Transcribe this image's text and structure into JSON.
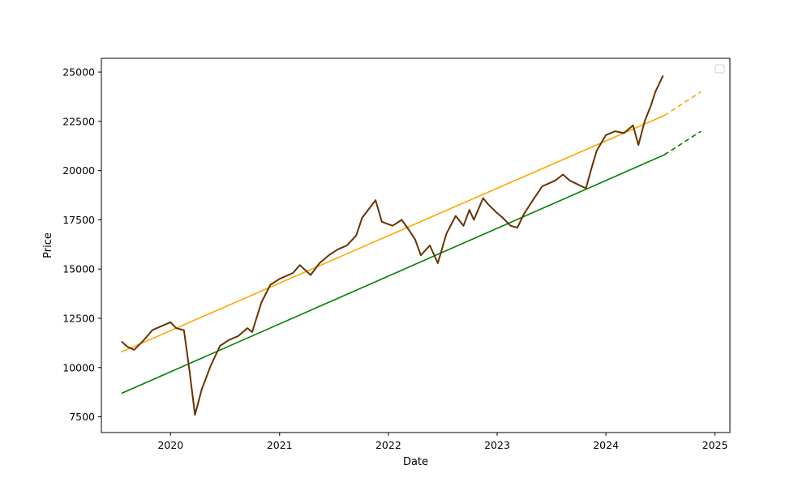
{
  "chart_data": {
    "type": "line",
    "title": "",
    "xlabel": "Date",
    "ylabel": "Price",
    "xlim": [
      "2019-05-14",
      "2025-02-20"
    ],
    "ylim": [
      6700,
      25700
    ],
    "x_ticks": [
      "2020",
      "2021",
      "2022",
      "2023",
      "2024",
      "2025"
    ],
    "y_ticks": [
      7500,
      10000,
      12500,
      15000,
      17500,
      20000,
      22500,
      25000
    ],
    "grid": false,
    "legend": {
      "placement": "top-right",
      "entries": []
    },
    "series": [
      {
        "color": "#663300",
        "style": "solid",
        "x": [
          "2019-07-22",
          "2019-08-10",
          "2019-09-01",
          "2019-10-01",
          "2019-11-01",
          "2019-12-01",
          "2020-01-01",
          "2020-01-20",
          "2020-02-15",
          "2020-03-05",
          "2020-03-23",
          "2020-04-15",
          "2020-05-15",
          "2020-06-15",
          "2020-07-15",
          "2020-08-15",
          "2020-09-15",
          "2020-10-01",
          "2020-11-01",
          "2020-12-01",
          "2021-01-01",
          "2021-02-15",
          "2021-03-10",
          "2021-04-15",
          "2021-05-15",
          "2021-06-15",
          "2021-07-15",
          "2021-08-15",
          "2021-09-15",
          "2021-10-05",
          "2021-11-19",
          "2021-12-10",
          "2022-01-15",
          "2022-02-15",
          "2022-03-10",
          "2022-04-01",
          "2022-04-20",
          "2022-05-20",
          "2022-06-16",
          "2022-07-15",
          "2022-08-15",
          "2022-09-10",
          "2022-09-30",
          "2022-10-15",
          "2022-11-15",
          "2022-12-01",
          "2022-12-28",
          "2023-01-20",
          "2023-02-15",
          "2023-03-10",
          "2023-04-01",
          "2023-05-01",
          "2023-06-01",
          "2023-07-15",
          "2023-08-10",
          "2023-09-01",
          "2023-10-26",
          "2023-11-15",
          "2023-12-01",
          "2024-01-01",
          "2024-02-01",
          "2024-03-01",
          "2024-04-01",
          "2024-04-19",
          "2024-05-10",
          "2024-05-31",
          "2024-06-15",
          "2024-07-10"
        ],
        "y": [
          11300,
          11050,
          10900,
          11350,
          11900,
          12100,
          12300,
          12000,
          11900,
          9800,
          7600,
          8900,
          10100,
          11100,
          11400,
          11600,
          12000,
          11800,
          13300,
          14200,
          14500,
          14800,
          15200,
          14700,
          15300,
          15700,
          16000,
          16200,
          16700,
          17600,
          18500,
          17400,
          17200,
          17500,
          17000,
          16500,
          15700,
          16200,
          15300,
          16800,
          17700,
          17200,
          18000,
          17500,
          18600,
          18300,
          17900,
          17600,
          17200,
          17100,
          17800,
          18500,
          19200,
          19500,
          19800,
          19500,
          19100,
          20200,
          21000,
          21800,
          22000,
          21900,
          22300,
          21300,
          22500,
          23300,
          24000,
          24800
        ]
      },
      {
        "color": "#ffa500",
        "style": "solid",
        "x": [
          "2019-07-22",
          "2024-07-15"
        ],
        "y": [
          10800,
          22800
        ]
      },
      {
        "color": "#ffa500",
        "style": "dashed",
        "x": [
          "2024-07-15",
          "2024-11-15"
        ],
        "y": [
          22800,
          24000
        ]
      },
      {
        "color": "#008000",
        "style": "solid",
        "x": [
          "2019-07-22",
          "2024-07-15"
        ],
        "y": [
          8700,
          20800
        ]
      },
      {
        "color": "#008000",
        "style": "dashed",
        "x": [
          "2024-07-15",
          "2024-11-15"
        ],
        "y": [
          20800,
          22000
        ]
      }
    ]
  }
}
